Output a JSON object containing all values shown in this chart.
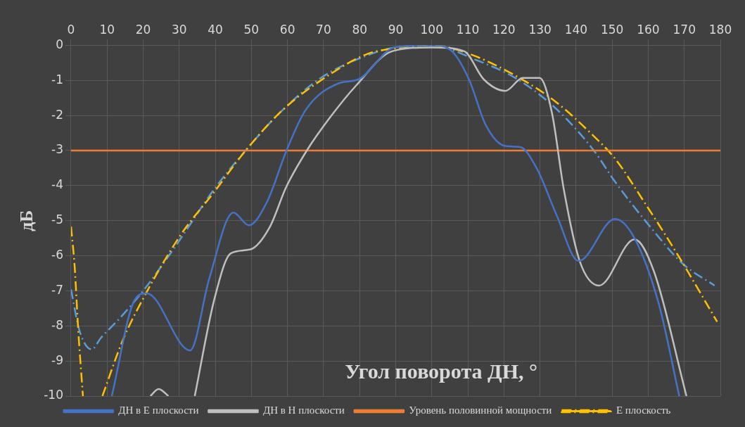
{
  "chart_data": {
    "type": "line",
    "xlabel": "Угол поворота ДН, °",
    "ylabel": "дБ",
    "xlim": [
      0,
      180
    ],
    "ylim": [
      -10,
      0
    ],
    "xticks": [
      0,
      10,
      20,
      30,
      40,
      50,
      60,
      70,
      80,
      90,
      100,
      110,
      120,
      130,
      140,
      150,
      160,
      170,
      180
    ],
    "yticks": [
      -10,
      -9,
      -8,
      -7,
      -6,
      -5,
      -4,
      -3,
      -2,
      -1,
      0
    ],
    "grid": true,
    "legend": "bottom",
    "marker": "none",
    "series": [
      {
        "name": "ДН в E плоскости",
        "color": "#4472c4",
        "line_style": "solid",
        "x": [
          11.3,
          17.7,
          21,
          33,
          38.3,
          45,
          49.3,
          54.3,
          59.7,
          65,
          74.3,
          79.7,
          89.7,
          100.2,
          105.6,
          110.3,
          115,
          120.4,
          124.5,
          129.2,
          134.6,
          140.7,
          150.8,
          156.2,
          163,
          168.6
        ],
        "values": [
          -10,
          -7.25,
          -7.07,
          -8.7,
          -6.66,
          -4.77,
          -5.13,
          -4.47,
          -3.01,
          -1.85,
          -1.08,
          -0.97,
          -0.06,
          0,
          -0.17,
          -0.97,
          -2.28,
          -2.87,
          -2.9,
          -3.53,
          -4.84,
          -6.15,
          -4.95,
          -5.5,
          -7.4,
          -10
        ]
      },
      {
        "name": "ДН в H плоскости",
        "color": "#bfbfbf",
        "line_style": "solid",
        "x": [
          22,
          24.3,
          27,
          30,
          34.3,
          39.7,
          44.3,
          49.7,
          55,
          59.7,
          65.3,
          71.7,
          79,
          89,
          100.2,
          109,
          114.4,
          120.4,
          125.2,
          129.9,
          133.3,
          136.6,
          141,
          146.4,
          156.2,
          161.6,
          170.6
        ],
        "values": [
          -10,
          -9.8,
          -10,
          null,
          -10,
          -7.25,
          -5.93,
          -5.82,
          -5.2,
          -4.03,
          -3.01,
          -2.07,
          -1.15,
          -0.17,
          -0.06,
          -0.17,
          -0.97,
          -1.3,
          -0.93,
          -0.93,
          -1.92,
          -4.11,
          -6.15,
          -6.85,
          -5.53,
          -6.45,
          -10
        ]
      },
      {
        "name": "Уровень половинной мощности",
        "color": "#ed7d31",
        "line_style": "solid",
        "x": [
          0,
          180
        ],
        "values": [
          -3,
          -3
        ]
      },
      {
        "name": "E плоскость",
        "color": "#ffc000",
        "line_style": "dashed",
        "x": [
          0,
          1,
          2,
          3.3,
          6,
          8.7,
          14.3,
          21,
          30.3,
          39.7,
          47.7,
          58.3,
          69.7,
          82.3,
          89.7,
          100.2,
          110.3,
          123.8,
          134.6,
          144,
          150.8,
          158.9,
          168.4,
          179.1
        ],
        "values": [
          -5.17,
          -6.3,
          -8.12,
          -10,
          null,
          -10,
          -8.42,
          -7.03,
          -5.42,
          -4.18,
          -3.09,
          -1.88,
          -0.97,
          -0.24,
          -0.09,
          0,
          -0.24,
          -0.9,
          -1.63,
          -2.5,
          -3.23,
          -4.47,
          -6.01,
          -7.88
        ]
      },
      {
        "color": "#5b9bd5",
        "line_style": "dashed",
        "x": [
          0,
          2.3,
          5.7,
          8.3,
          13.7,
          20.3,
          29,
          39.7,
          48.3,
          58.3,
          69.7,
          82.3,
          89.7,
          100.2,
          111.6,
          123.8,
          134.9,
          145,
          150.8,
          160.2,
          169.6,
          178.4
        ],
        "values": [
          -6.96,
          -8.12,
          -8.67,
          -8.34,
          -7.76,
          -6.96,
          -5.72,
          -4.1,
          -3.01,
          -1.88,
          -0.9,
          -0.28,
          -0.06,
          0,
          -0.39,
          -0.97,
          -1.85,
          -3.01,
          -3.89,
          -5.13,
          -6.23,
          -6.85
        ]
      }
    ]
  }
}
